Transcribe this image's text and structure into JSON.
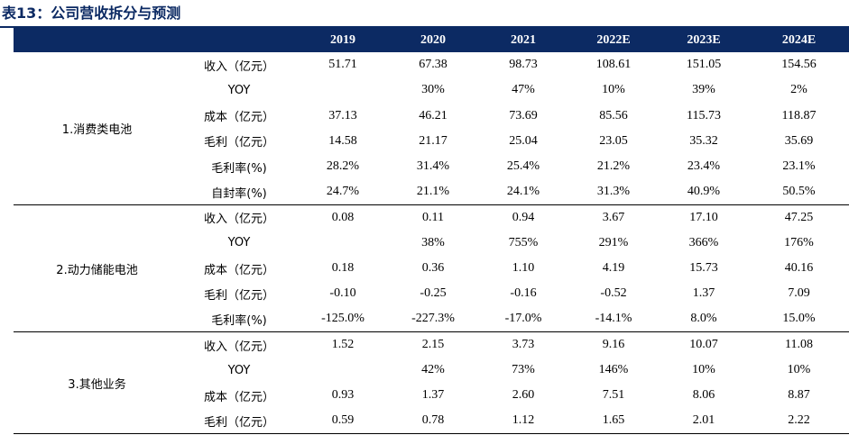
{
  "title": "表13：公司营收拆分与预测",
  "header": {
    "segment": "",
    "metric": "",
    "years": [
      "2019",
      "2020",
      "2021",
      "2022E",
      "2023E",
      "2024E"
    ]
  },
  "groups": [
    {
      "name": "1.消费类电池",
      "rows": [
        {
          "label": "收入（亿元）",
          "values": [
            "51.71",
            "67.38",
            "98.73",
            "108.61",
            "151.05",
            "154.56"
          ]
        },
        {
          "label": "YOY",
          "values": [
            "",
            "30%",
            "47%",
            "10%",
            "39%",
            "2%"
          ]
        },
        {
          "label": "成本（亿元）",
          "values": [
            "37.13",
            "46.21",
            "73.69",
            "85.56",
            "115.73",
            "118.87"
          ]
        },
        {
          "label": "毛利（亿元）",
          "values": [
            "14.58",
            "21.17",
            "25.04",
            "23.05",
            "35.32",
            "35.69"
          ]
        },
        {
          "label": "毛利率(%)",
          "values": [
            "28.2%",
            "31.4%",
            "25.4%",
            "21.2%",
            "23.4%",
            "23.1%"
          ]
        },
        {
          "label": "自封率(%)",
          "values": [
            "24.7%",
            "21.1%",
            "24.1%",
            "31.3%",
            "40.9%",
            "50.5%"
          ]
        }
      ]
    },
    {
      "name": "2.动力储能电池",
      "rows": [
        {
          "label": "收入（亿元）",
          "values": [
            "0.08",
            "0.11",
            "0.94",
            "3.67",
            "17.10",
            "47.25"
          ]
        },
        {
          "label": "YOY",
          "values": [
            "",
            "38%",
            "755%",
            "291%",
            "366%",
            "176%"
          ]
        },
        {
          "label": "成本（亿元）",
          "values": [
            "0.18",
            "0.36",
            "1.10",
            "4.19",
            "15.73",
            "40.16"
          ]
        },
        {
          "label": "毛利（亿元）",
          "values": [
            "-0.10",
            "-0.25",
            "-0.16",
            "-0.52",
            "1.37",
            "7.09"
          ]
        },
        {
          "label": "毛利率(%)",
          "values": [
            "-125.0%",
            "-227.3%",
            "-17.0%",
            "-14.1%",
            "8.0%",
            "15.0%"
          ]
        }
      ]
    },
    {
      "name": "3.其他业务",
      "rows": [
        {
          "label": "收入（亿元）",
          "values": [
            "1.52",
            "2.15",
            "3.73",
            "9.16",
            "10.07",
            "11.08"
          ]
        },
        {
          "label": "YOY",
          "values": [
            "",
            "42%",
            "73%",
            "146%",
            "10%",
            "10%"
          ]
        },
        {
          "label": "成本（亿元）",
          "values": [
            "0.93",
            "1.37",
            "2.60",
            "7.51",
            "8.06",
            "8.87"
          ]
        },
        {
          "label": "毛利（亿元）",
          "values": [
            "0.59",
            "0.78",
            "1.12",
            "1.65",
            "2.01",
            "2.22"
          ]
        }
      ]
    }
  ]
}
